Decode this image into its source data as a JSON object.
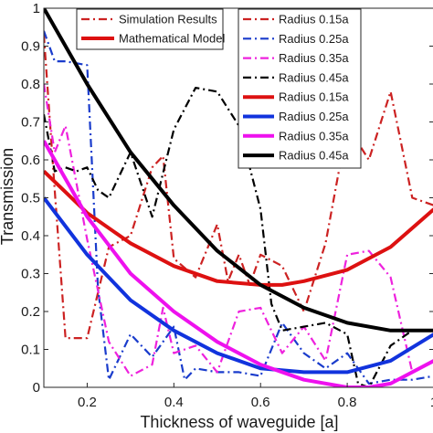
{
  "chart_data": {
    "type": "line",
    "title": "",
    "xlabel": "Thickness of waveguide [a]",
    "ylabel": "Transmission",
    "xlim": [
      0.1,
      1.0
    ],
    "ylim": [
      0,
      1
    ],
    "xticks": [
      "0.2",
      "0.4",
      "0.6",
      "0.8",
      "1"
    ],
    "xtick_values": [
      0.2,
      0.4,
      0.6,
      0.8,
      1.0
    ],
    "yticks": [
      "0",
      "0.1",
      "0.2",
      "0.3",
      "0.4",
      "0.5",
      "0.6",
      "0.7",
      "0.8",
      "0.9",
      "1"
    ],
    "ytick_values": [
      0,
      0.1,
      0.2,
      0.3,
      0.4,
      0.5,
      0.6,
      0.7,
      0.8,
      0.9,
      1.0
    ],
    "grid": false,
    "legends": [
      {
        "placement": "top-left",
        "entries": [
          {
            "label": "Simulation Results",
            "color": "#cc2222",
            "style": "dashdot"
          },
          {
            "label": "Mathematical Model",
            "color": "#dd1111",
            "style": "solid"
          }
        ]
      },
      {
        "placement": "top-right",
        "entries": [
          {
            "label": "Radius 0.15a",
            "color": "#cc2222",
            "style": "dashdot"
          },
          {
            "label": "Radius 0.25a",
            "color": "#1a3ccc",
            "style": "dashdot"
          },
          {
            "label": "Radius 0.35a",
            "color": "#ee22dd",
            "style": "dashdot"
          },
          {
            "label": "Radius 0.45a",
            "color": "#000000",
            "style": "dashdot"
          },
          {
            "label": "Radius 0.15a",
            "color": "#dd1111",
            "style": "solid"
          },
          {
            "label": "Radius 0.25a",
            "color": "#1133dd",
            "style": "solid"
          },
          {
            "label": "Radius 0.35a",
            "color": "#ee11ee",
            "style": "solid"
          },
          {
            "label": "Radius 0.45a",
            "color": "#000000",
            "style": "solid"
          }
        ]
      }
    ],
    "series": [
      {
        "name": "Radius 0.15a",
        "kind": "simulation",
        "color": "#cc2222",
        "style": "dashdot",
        "x": [
          0.1,
          0.125,
          0.15,
          0.2,
          0.25,
          0.3,
          0.35,
          0.375,
          0.4,
          0.45,
          0.5,
          0.525,
          0.55,
          0.575,
          0.6,
          0.65,
          0.7,
          0.75,
          0.8,
          0.85,
          0.9,
          0.95,
          1.0
        ],
        "y": [
          0.93,
          0.52,
          0.13,
          0.13,
          0.37,
          0.4,
          0.58,
          0.61,
          0.34,
          0.29,
          0.43,
          0.28,
          0.35,
          0.27,
          0.35,
          0.32,
          0.2,
          0.38,
          0.69,
          0.6,
          0.78,
          0.5,
          0.48
        ]
      },
      {
        "name": "Radius 0.25a",
        "kind": "simulation",
        "color": "#1a3ccc",
        "style": "dashdot",
        "x": [
          0.1,
          0.125,
          0.15,
          0.2,
          0.225,
          0.25,
          0.3,
          0.35,
          0.4,
          0.425,
          0.45,
          0.5,
          0.55,
          0.6,
          0.65,
          0.7,
          0.75,
          0.8,
          0.85,
          0.9,
          0.95,
          1.0
        ],
        "y": [
          0.94,
          0.86,
          0.86,
          0.85,
          0.26,
          0.02,
          0.14,
          0.08,
          0.16,
          0.02,
          0.05,
          0.04,
          0.04,
          0.03,
          0.17,
          0.09,
          0.05,
          0.09,
          0.01,
          0.02,
          0.02,
          0.03
        ]
      },
      {
        "name": "Radius 0.35a",
        "kind": "simulation",
        "color": "#ee22dd",
        "style": "dashdot",
        "x": [
          0.1,
          0.125,
          0.15,
          0.2,
          0.25,
          0.3,
          0.35,
          0.375,
          0.4,
          0.45,
          0.5,
          0.55,
          0.6,
          0.65,
          0.7,
          0.75,
          0.8,
          0.85,
          0.9,
          0.95,
          1.0
        ],
        "y": [
          0.8,
          0.62,
          0.69,
          0.39,
          0.12,
          0.03,
          0.06,
          0.21,
          0.09,
          0.11,
          0.04,
          0.2,
          0.21,
          0.09,
          0.16,
          0.07,
          0.35,
          0.36,
          0.29,
          0.04,
          0.07
        ]
      },
      {
        "name": "Radius 0.45a",
        "kind": "simulation",
        "color": "#000000",
        "style": "dashdot",
        "x": [
          0.1,
          0.125,
          0.15,
          0.175,
          0.2,
          0.225,
          0.25,
          0.3,
          0.35,
          0.4,
          0.45,
          0.5,
          0.55,
          0.575,
          0.6,
          0.625,
          0.65,
          0.7,
          0.75,
          0.8,
          0.825,
          0.85,
          0.9,
          0.95,
          1.0
        ],
        "y": [
          0.72,
          0.57,
          0.58,
          0.57,
          0.58,
          0.52,
          0.5,
          0.62,
          0.45,
          0.68,
          0.79,
          0.78,
          0.69,
          0.58,
          0.47,
          0.22,
          0.15,
          0.16,
          0.17,
          0.14,
          0.01,
          0.0,
          0.11,
          0.15,
          0.15
        ]
      },
      {
        "name": "Radius 0.15a",
        "kind": "model",
        "color": "#dd1111",
        "style": "solid",
        "x": [
          0.1,
          0.2,
          0.3,
          0.4,
          0.5,
          0.6,
          0.65,
          0.7,
          0.8,
          0.9,
          1.0
        ],
        "y": [
          0.57,
          0.46,
          0.38,
          0.32,
          0.28,
          0.27,
          0.27,
          0.28,
          0.31,
          0.37,
          0.47
        ]
      },
      {
        "name": "Radius 0.25a",
        "kind": "model",
        "color": "#1133dd",
        "style": "solid",
        "x": [
          0.1,
          0.2,
          0.3,
          0.4,
          0.5,
          0.6,
          0.7,
          0.75,
          0.8,
          0.9,
          1.0
        ],
        "y": [
          0.5,
          0.35,
          0.23,
          0.15,
          0.09,
          0.05,
          0.04,
          0.04,
          0.04,
          0.07,
          0.14
        ]
      },
      {
        "name": "Radius 0.35a",
        "kind": "model",
        "color": "#ee11ee",
        "style": "solid",
        "x": [
          0.1,
          0.2,
          0.3,
          0.4,
          0.5,
          0.6,
          0.7,
          0.8,
          0.85,
          0.9,
          1.0
        ],
        "y": [
          0.65,
          0.45,
          0.3,
          0.2,
          0.12,
          0.06,
          0.02,
          0.0,
          0.0,
          0.01,
          0.07
        ]
      },
      {
        "name": "Radius 0.45a",
        "kind": "model",
        "color": "#000000",
        "style": "solid",
        "x": [
          0.1,
          0.2,
          0.3,
          0.4,
          0.5,
          0.6,
          0.7,
          0.8,
          0.9,
          1.0
        ],
        "y": [
          1.0,
          0.8,
          0.62,
          0.48,
          0.36,
          0.27,
          0.21,
          0.17,
          0.15,
          0.15
        ]
      }
    ]
  }
}
